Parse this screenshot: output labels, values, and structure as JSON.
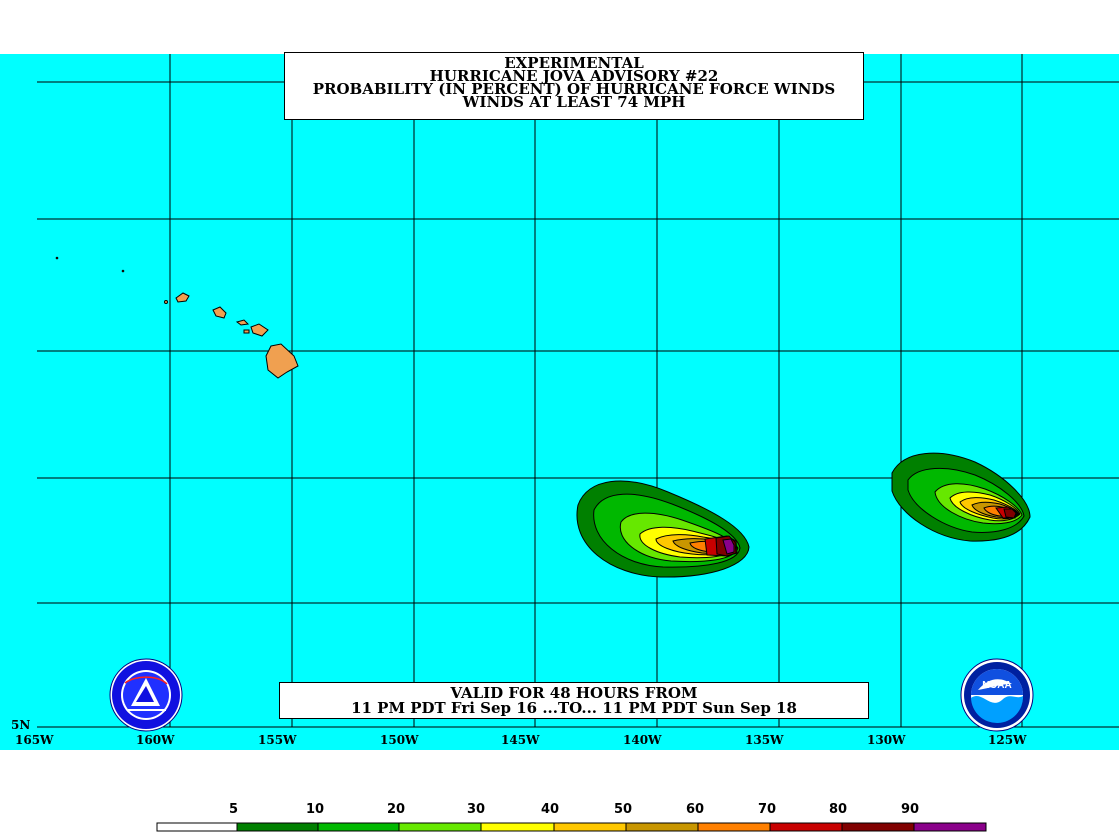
{
  "title": {
    "line1": "EXPERIMENTAL",
    "line2": "HURRICANE JOVA ADVISORY #22",
    "line3": "PROBABILITY (IN PERCENT) OF HURRICANE FORCE WINDS",
    "line4": "WINDS AT LEAST 74 MPH"
  },
  "valid": {
    "line1": "VALID FOR 48 HOURS FROM",
    "line2": "11 PM PDT Fri Sep 16 ...TO... 11 PM PDT Sun Sep 18"
  },
  "axis": {
    "lat_label": "5N",
    "lon_labels": [
      "165W",
      "160W",
      "155W",
      "150W",
      "145W",
      "140W",
      "135W",
      "130W",
      "125W"
    ]
  },
  "legend": {
    "labels": [
      "5",
      "10",
      "20",
      "30",
      "40",
      "50",
      "60",
      "70",
      "80",
      "90"
    ],
    "colors": [
      "#ffffff",
      "#008000",
      "#00b800",
      "#66e800",
      "#ffff00",
      "#ffc800",
      "#c89600",
      "#ff8000",
      "#c80000",
      "#800000",
      "#8a008a"
    ]
  },
  "colors": {
    "ocean": "#00ffff",
    "land": "#f0a050",
    "grid": "#000000"
  },
  "logos": {
    "nws": "national-weather-service-seal",
    "noaa": "NOAA"
  }
}
